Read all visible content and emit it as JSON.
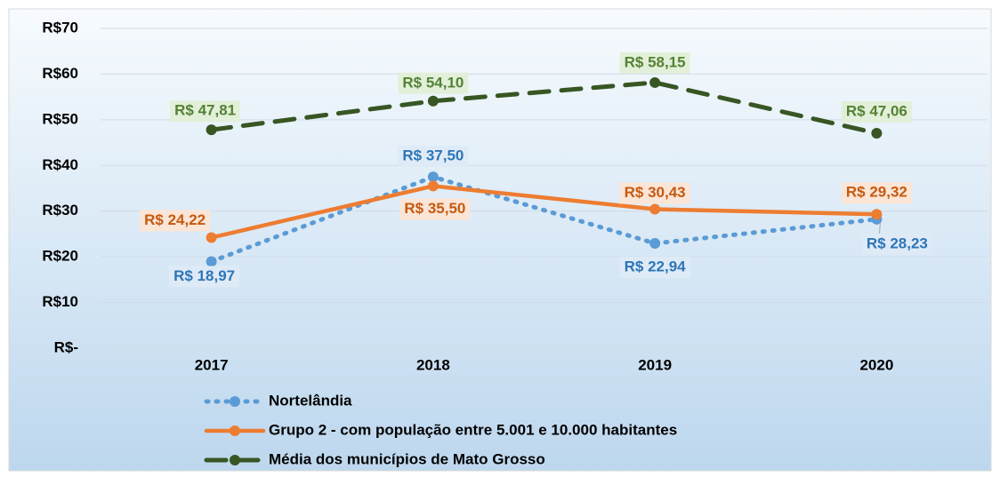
{
  "chart_data": {
    "type": "line",
    "categories": [
      "2017",
      "2018",
      "2019",
      "2020"
    ],
    "ylim": [
      0,
      70
    ],
    "yticks": [
      {
        "value": 0,
        "label": "R$-"
      },
      {
        "value": 10,
        "label": "R$10"
      },
      {
        "value": 20,
        "label": "R$20"
      },
      {
        "value": 30,
        "label": "R$30"
      },
      {
        "value": 40,
        "label": "R$40"
      },
      {
        "value": 50,
        "label": "R$50"
      },
      {
        "value": 60,
        "label": "R$60"
      },
      {
        "value": 70,
        "label": "R$70"
      }
    ],
    "grid": true,
    "legend": "bottom",
    "series": [
      {
        "name": "Nortelândia",
        "color": "#5b9bd5",
        "line_style": "dotted",
        "label_bg": "#deebf7",
        "label_color": "#2e75b6",
        "values": [
          18.97,
          37.5,
          22.94,
          28.23
        ],
        "value_labels": [
          "R$ 18,97",
          "R$ 37,50",
          "R$ 22,94",
          "R$ 28,23"
        ]
      },
      {
        "name": "Grupo 2 - com população entre 5.001 e 10.000 habitantes",
        "color": "#ed7d31",
        "line_style": "solid",
        "label_bg": "#fbe5d6",
        "label_color": "#c55a11",
        "values": [
          24.22,
          35.5,
          30.43,
          29.32
        ],
        "value_labels": [
          "R$ 24,22",
          "R$ 35,50",
          "R$ 30,43",
          "R$ 29,32"
        ]
      },
      {
        "name": "Média dos municípios de Mato Grosso",
        "color": "#375623",
        "line_style": "dashed",
        "label_bg": "#e2f0d9",
        "label_color": "#548235",
        "values": [
          47.81,
          54.1,
          58.15,
          47.06
        ],
        "value_labels": [
          "R$ 47,81",
          "R$ 54,10",
          "R$ 58,15",
          "R$ 47,06"
        ]
      }
    ]
  }
}
